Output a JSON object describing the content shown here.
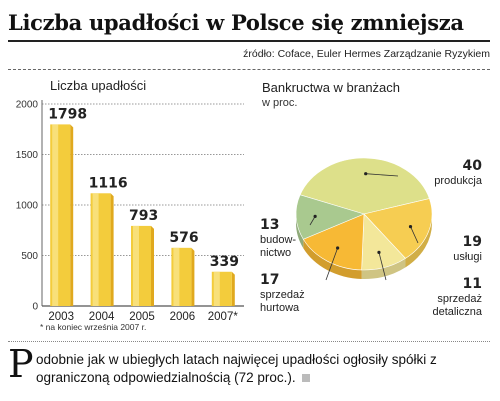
{
  "headline": "Liczba upadłości w Polsce się zmniejsza",
  "source": "źródło: Coface, Euler Hermes Zarządzanie Ryzykiem",
  "footnote": "* na koniec września 2007 r.",
  "body": {
    "dropcap": "P",
    "text": "odobnie jak w ubiegłych latach najwięcej upadłości ogłosiły spółki z ograniczoną odpowiedzialnością (72 proc.)."
  },
  "colors": {
    "bar_fill": "#f3cc3c",
    "bar_highlight": "#f9e58a",
    "grid": "#777777",
    "highlight_value": "#b01236",
    "pie": [
      "#dde08a",
      "#f6cd52",
      "#f3e79a",
      "#f7b935",
      "#a9c98f"
    ]
  },
  "chart_data": [
    {
      "type": "bar",
      "title": "Liczba upadłości",
      "categories": [
        "2003",
        "2004",
        "2005",
        "2006",
        "2007*"
      ],
      "values": [
        1798,
        1116,
        793,
        576,
        339
      ],
      "value_labels": [
        "1798",
        "1116",
        "793",
        "576",
        "339"
      ],
      "highlight_index": 0,
      "ylim": [
        0,
        2000
      ],
      "yticks": [
        0,
        500,
        1000,
        1500,
        2000
      ],
      "ytick_labels": [
        "0",
        "500",
        "1000",
        "1500",
        "2000"
      ],
      "grid": true
    },
    {
      "type": "pie",
      "title": "Bankructwa w branżach",
      "unit": "w proc.",
      "slices": [
        {
          "value": 40,
          "value_label": "40",
          "label_lines": [
            "produkcja"
          ]
        },
        {
          "value": 19,
          "value_label": "19",
          "label_lines": [
            "usługi"
          ]
        },
        {
          "value": 11,
          "value_label": "11",
          "label_lines": [
            "sprzedaż",
            "detaliczna"
          ]
        },
        {
          "value": 17,
          "value_label": "17",
          "label_lines": [
            "sprzedaż",
            "hurtowa"
          ]
        },
        {
          "value": 13,
          "value_label": "13",
          "label_lines": [
            "budow-",
            "nictwo"
          ]
        }
      ]
    }
  ]
}
